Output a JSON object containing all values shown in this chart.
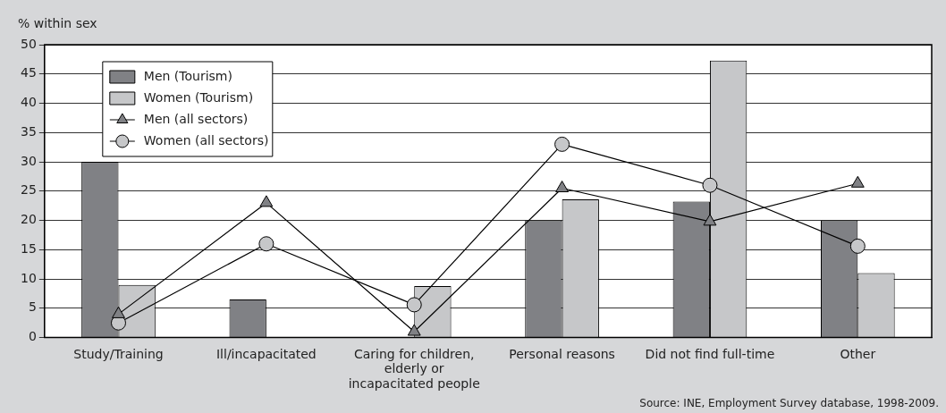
{
  "chart_data": {
    "type": "bar",
    "ylabel": "% within sex",
    "categories": [
      "Study/Training",
      "Ill/incapacitated",
      "Caring for children, elderly or incapacitated people",
      "Personal reasons",
      "Did not find full-time",
      "Other"
    ],
    "series": [
      {
        "name": "Men (Tourism)",
        "color": "#808185",
        "values": [
          30,
          6.5,
          0,
          20,
          23.2,
          20
        ]
      },
      {
        "name": "Women (Tourism)",
        "color": "#c6c7c9",
        "values": [
          9,
          0,
          8.8,
          23.6,
          47.3,
          11
        ]
      },
      {
        "name": "Men (all sectors)",
        "type": "line",
        "marker": "triangle",
        "color": "#808185",
        "values": [
          4,
          23,
          1,
          25.5,
          19.8,
          26.3
        ]
      },
      {
        "name": "Women (all sectors)",
        "type": "line",
        "marker": "circle",
        "color": "#c6c7c9",
        "values": [
          2.5,
          16,
          5.6,
          33,
          26,
          15.6
        ]
      }
    ],
    "ylim": [
      0,
      50
    ],
    "yticks": [
      0,
      5,
      10,
      15,
      20,
      25,
      30,
      35,
      40,
      45,
      50
    ],
    "grid": "y",
    "legend": "top left",
    "annotations": [
      "Source: INE, Employment Survey database, 1998-2009."
    ]
  }
}
